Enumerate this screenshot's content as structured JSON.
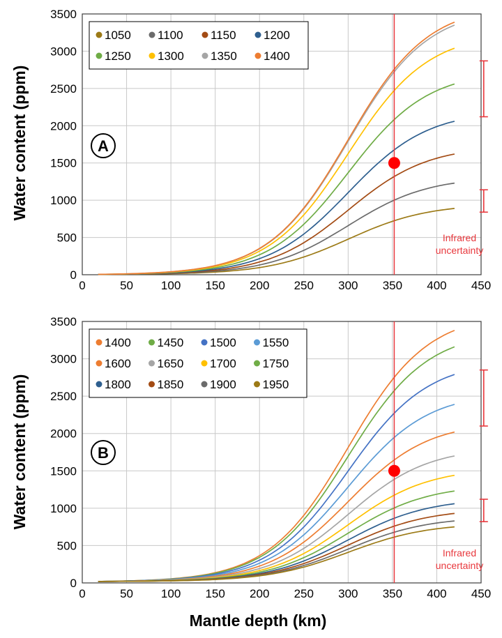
{
  "figure": {
    "xlabel": "Mantle depth (km)",
    "marker_color": "#ff0000",
    "vline_color": "#e8383d",
    "errorbar_color": "#e8383d"
  },
  "chart_data": [
    {
      "type": "line",
      "panel_label": "A",
      "title": "",
      "xlabel": "",
      "ylabel": "Water content (ppm)",
      "xlim": [
        0,
        450
      ],
      "ylim": [
        0,
        3500
      ],
      "xticks": [
        0,
        50,
        100,
        150,
        200,
        250,
        300,
        350,
        400,
        450
      ],
      "yticks": [
        0,
        500,
        1000,
        1500,
        2000,
        2500,
        3000,
        3500
      ],
      "grid": true,
      "legend_position": "top-left",
      "legend_columns": 4,
      "x_range": [
        18,
        420
      ],
      "series": [
        {
          "name": "1050",
          "color": "#9c7a16",
          "y_start": 5,
          "y_end": 890
        },
        {
          "name": "1100",
          "color": "#6b6b6b",
          "y_start": 5,
          "y_end": 1230
        },
        {
          "name": "1150",
          "color": "#a34b14",
          "y_start": 5,
          "y_end": 1620
        },
        {
          "name": "1200",
          "color": "#2e5f8f",
          "y_start": 5,
          "y_end": 2060
        },
        {
          "name": "1250",
          "color": "#6fac46",
          "y_start": 5,
          "y_end": 2560
        },
        {
          "name": "1300",
          "color": "#ffc000",
          "y_start": 5,
          "y_end": 3040
        },
        {
          "name": "1350",
          "color": "#a5a5a5",
          "y_start": 5,
          "y_end": 3350
        },
        {
          "name": "1400",
          "color": "#ed7d31",
          "y_start": 5,
          "y_end": 3390
        }
      ],
      "vertical_line_x": 352,
      "marker": {
        "x": 352,
        "y": 1500
      },
      "error_bars": [
        {
          "x": 453,
          "low": 2120,
          "high": 2870
        },
        {
          "x": 453,
          "low": 840,
          "high": 1140
        }
      ],
      "annotation": [
        "Infrared",
        "uncertainty"
      ]
    },
    {
      "type": "line",
      "panel_label": "B",
      "title": "",
      "xlabel": "Mantle depth (km)",
      "ylabel": "Water content (ppm)",
      "xlim": [
        0,
        450
      ],
      "ylim": [
        0,
        3500
      ],
      "xticks": [
        0,
        50,
        100,
        150,
        200,
        250,
        300,
        350,
        400,
        450
      ],
      "yticks": [
        0,
        500,
        1000,
        1500,
        2000,
        2500,
        3000,
        3500
      ],
      "grid": true,
      "legend_position": "top-left",
      "legend_columns": 4,
      "x_range": [
        18,
        420
      ],
      "series": [
        {
          "name": "1400",
          "color": "#ed7d31",
          "y_start": 20,
          "y_end": 3380
        },
        {
          "name": "1450",
          "color": "#6fac46",
          "y_start": 20,
          "y_end": 3160
        },
        {
          "name": "1500",
          "color": "#4472c4",
          "y_start": 20,
          "y_end": 2790
        },
        {
          "name": "1550",
          "color": "#5b9bd5",
          "y_start": 20,
          "y_end": 2390
        },
        {
          "name": "1600",
          "color": "#ed7d31",
          "y_start": 20,
          "y_end": 2020
        },
        {
          "name": "1650",
          "color": "#a5a5a5",
          "y_start": 20,
          "y_end": 1700
        },
        {
          "name": "1700",
          "color": "#ffc000",
          "y_start": 20,
          "y_end": 1440
        },
        {
          "name": "1750",
          "color": "#70ad47",
          "y_start": 20,
          "y_end": 1230
        },
        {
          "name": "1800",
          "color": "#2e5f8f",
          "y_start": 20,
          "y_end": 1060
        },
        {
          "name": "1850",
          "color": "#a34b14",
          "y_start": 20,
          "y_end": 930
        },
        {
          "name": "1900",
          "color": "#6b6b6b",
          "y_start": 20,
          "y_end": 830
        },
        {
          "name": "1950",
          "color": "#9c7a16",
          "y_start": 20,
          "y_end": 750
        }
      ],
      "vertical_line_x": 352,
      "marker": {
        "x": 352,
        "y": 1500
      },
      "error_bars": [
        {
          "x": 453,
          "low": 2100,
          "high": 2850
        },
        {
          "x": 453,
          "low": 820,
          "high": 1120
        }
      ],
      "annotation": [
        "Infrared",
        "uncertainty"
      ]
    }
  ]
}
